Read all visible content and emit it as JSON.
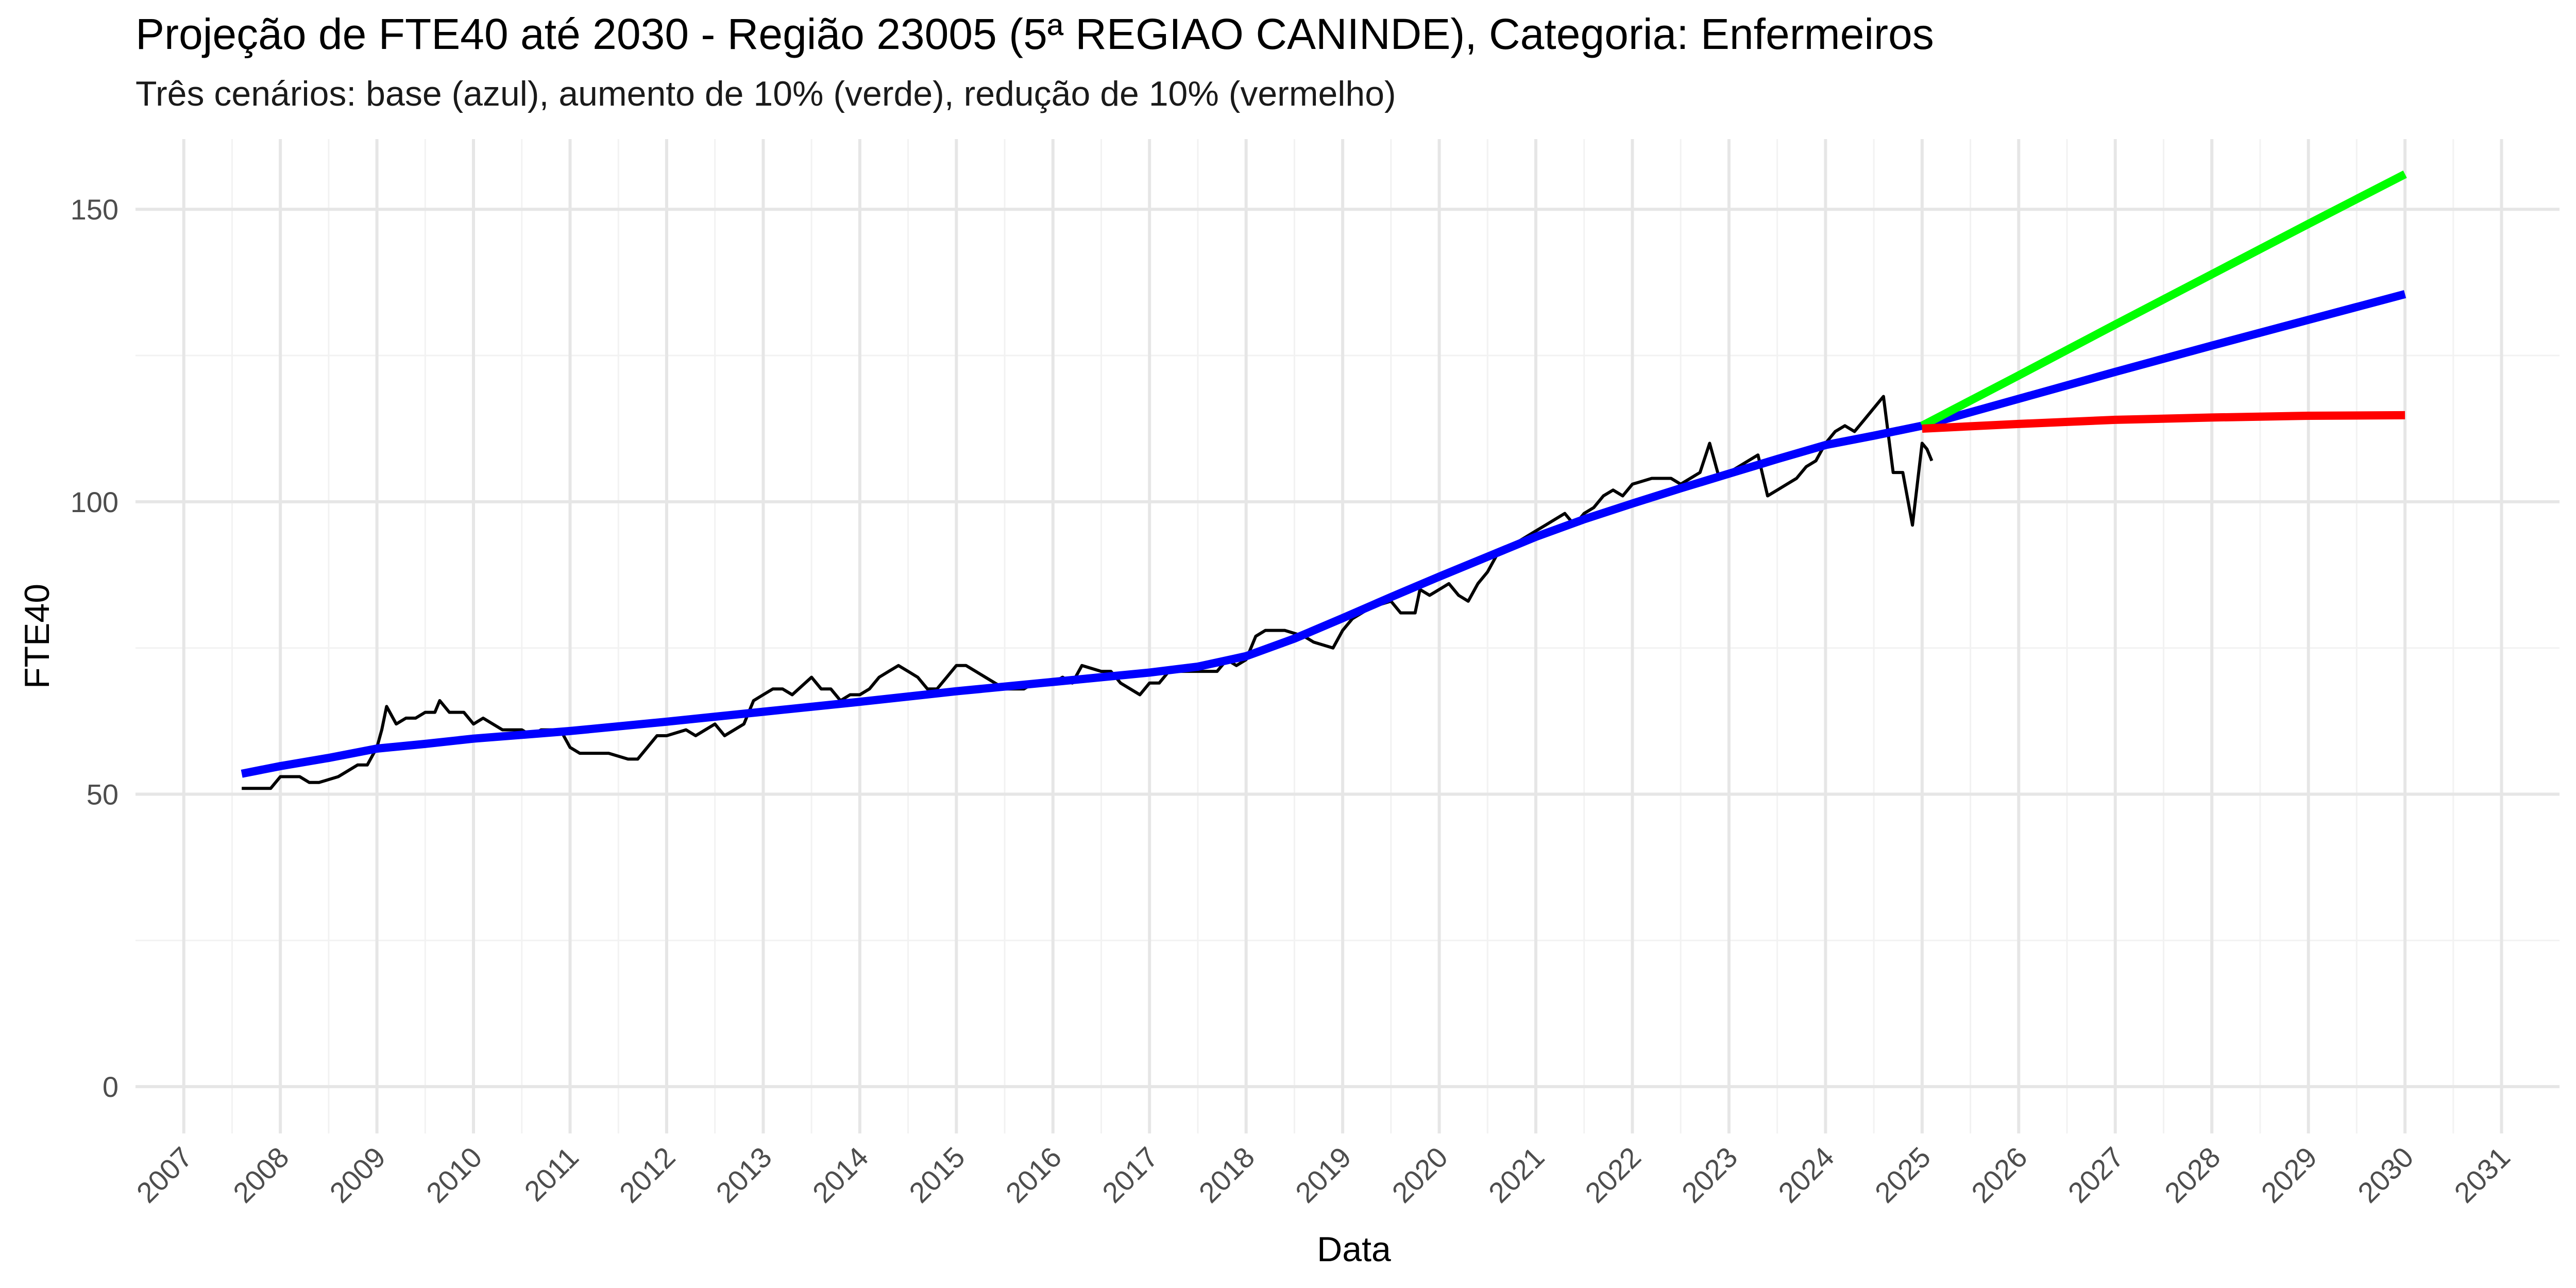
{
  "chart_data": {
    "type": "line",
    "title": "Projeção de FTE40 até 2030 - Região 23005 (5ª REGIAO CANINDE), Categoria: Enfermeiros",
    "subtitle": "Três cenários: base (azul), aumento de 10% (verde), redução de 10% (vermelho)",
    "xlabel": "Data",
    "ylabel": "FTE40",
    "xlim": [
      2006.5,
      2031.6
    ],
    "ylim": [
      -8,
      162
    ],
    "x_ticks": [
      "2007",
      "2008",
      "2009",
      "2010",
      "2011",
      "2012",
      "2013",
      "2014",
      "2015",
      "2016",
      "2017",
      "2018",
      "2019",
      "2020",
      "2021",
      "2022",
      "2023",
      "2024",
      "2025",
      "2026",
      "2027",
      "2028",
      "2029",
      "2030",
      "2031"
    ],
    "y_ticks": [
      0,
      50,
      100,
      150
    ],
    "grid": true,
    "legend": "none",
    "series": [
      {
        "role": "observed",
        "color": "#000000",
        "x": [
          2007.6,
          2007.9,
          2008.0,
          2008.2,
          2008.3,
          2008.4,
          2008.6,
          2008.8,
          2008.9,
          2009.0,
          2009.05,
          2009.1,
          2009.2,
          2009.3,
          2009.4,
          2009.5,
          2009.6,
          2009.65,
          2009.75,
          2009.9,
          2010.0,
          2010.1,
          2010.2,
          2010.3,
          2010.5,
          2010.6,
          2010.7,
          2010.9,
          2011.0,
          2011.1,
          2011.2,
          2011.3,
          2011.4,
          2011.6,
          2011.7,
          2011.8,
          2011.9,
          2012.0,
          2012.2,
          2012.3,
          2012.5,
          2012.6,
          2012.8,
          2012.9,
          2013.0,
          2013.1,
          2013.2,
          2013.3,
          2013.5,
          2013.6,
          2013.7,
          2013.8,
          2013.9,
          2014.0,
          2014.1,
          2014.2,
          2014.3,
          2014.4,
          2014.5,
          2014.6,
          2014.7,
          2014.8,
          2014.9,
          2015.0,
          2015.1,
          2015.2,
          2015.3,
          2015.5,
          2015.6,
          2015.7,
          2015.8,
          2016.0,
          2016.1,
          2016.2,
          2016.3,
          2016.5,
          2016.6,
          2016.7,
          2016.9,
          2017.0,
          2017.1,
          2017.2,
          2017.4,
          2017.5,
          2017.7,
          2017.8,
          2017.9,
          2018.0,
          2018.1,
          2018.2,
          2018.4,
          2018.6,
          2018.7,
          2018.9,
          2019.0,
          2019.1,
          2019.2,
          2019.3,
          2019.5,
          2019.6,
          2019.75,
          2019.8,
          2019.9,
          2020.0,
          2020.1,
          2020.2,
          2020.3,
          2020.4,
          2020.5,
          2020.6,
          2020.7,
          2020.8,
          2020.9,
          2021.0,
          2021.1,
          2021.2,
          2021.3,
          2021.4,
          2021.5,
          2021.6,
          2021.7,
          2021.8,
          2021.9,
          2022.0,
          2022.2,
          2022.4,
          2022.5,
          2022.6,
          2022.7,
          2022.8,
          2022.85,
          2022.9,
          2023.0,
          2023.1,
          2023.2,
          2023.3,
          2023.4,
          2023.5,
          2023.6,
          2023.7,
          2023.8,
          2023.9,
          2024.0,
          2024.1,
          2024.2,
          2024.3,
          2024.4,
          2024.5,
          2024.6,
          2024.7,
          2024.8,
          2024.9,
          2025.0,
          2025.05,
          2025.1
        ],
        "y": [
          51,
          51,
          53,
          53,
          52,
          52,
          53,
          55,
          55,
          58,
          61,
          65,
          62,
          63,
          63,
          64,
          64,
          66,
          64,
          64,
          62,
          63,
          62,
          61,
          61,
          60,
          61,
          61,
          58,
          57,
          57,
          57,
          57,
          56,
          56,
          58,
          60,
          60,
          61,
          60,
          62,
          60,
          62,
          66,
          67,
          68,
          68,
          67,
          70,
          68,
          68,
          66,
          67,
          67,
          68,
          70,
          71,
          72,
          71,
          70,
          68,
          68,
          70,
          72,
          72,
          71,
          70,
          68,
          68,
          68,
          69,
          69,
          70,
          69,
          72,
          71,
          71,
          69,
          67,
          69,
          69,
          71,
          71,
          71,
          71,
          73,
          72,
          73,
          77,
          78,
          78,
          77,
          76,
          75,
          78,
          80,
          81,
          82,
          83,
          81,
          81,
          85,
          84,
          85,
          86,
          84,
          83,
          86,
          88,
          91,
          92,
          93,
          94,
          95,
          96,
          97,
          98,
          96,
          98,
          99,
          101,
          102,
          101,
          103,
          104,
          104,
          103,
          104,
          105,
          110,
          107,
          104,
          105,
          106,
          107,
          108,
          101,
          102,
          103,
          104,
          106,
          107,
          110,
          112,
          113,
          112,
          114,
          116,
          118,
          105,
          105,
          96,
          110,
          109,
          107
        ]
      },
      {
        "role": "base",
        "color": "#0000ff",
        "x": [
          2007.6,
          2008.0,
          2008.5,
          2009.0,
          2009.5,
          2010.0,
          2011.0,
          2012.0,
          2013.0,
          2014.0,
          2015.0,
          2016.0,
          2017.0,
          2017.5,
          2018.0,
          2018.5,
          2019.0,
          2019.5,
          2020.0,
          2020.5,
          2021.0,
          2021.5,
          2022.0,
          2022.5,
          2023.0,
          2023.5,
          2024.0,
          2024.5,
          2025.0,
          2026.0,
          2027.0,
          2028.0,
          2029.0,
          2030.0
        ],
        "y": [
          53.5,
          54.8,
          56.2,
          57.8,
          58.6,
          59.5,
          60.8,
          62.4,
          64.1,
          65.8,
          67.6,
          69.2,
          70.8,
          71.8,
          73.6,
          76.6,
          80.1,
          83.7,
          87.2,
          90.6,
          94.0,
          97.0,
          99.7,
          102.3,
          104.8,
          107.3,
          109.7,
          111.3,
          113.0,
          117.6,
          122.2,
          126.7,
          131.1,
          135.5
        ]
      },
      {
        "role": "increase-10pct",
        "color": "#00ff00",
        "x": [
          2025.0,
          2026.0,
          2027.0,
          2028.0,
          2029.0,
          2030.0
        ],
        "y": [
          113.0,
          121.6,
          130.3,
          138.9,
          147.5,
          156.0
        ]
      },
      {
        "role": "decrease-10pct",
        "color": "#ff0000",
        "x": [
          2025.0,
          2026.0,
          2027.0,
          2028.0,
          2029.0,
          2030.0
        ],
        "y": [
          112.5,
          113.3,
          114.0,
          114.4,
          114.7,
          114.8
        ]
      }
    ]
  }
}
